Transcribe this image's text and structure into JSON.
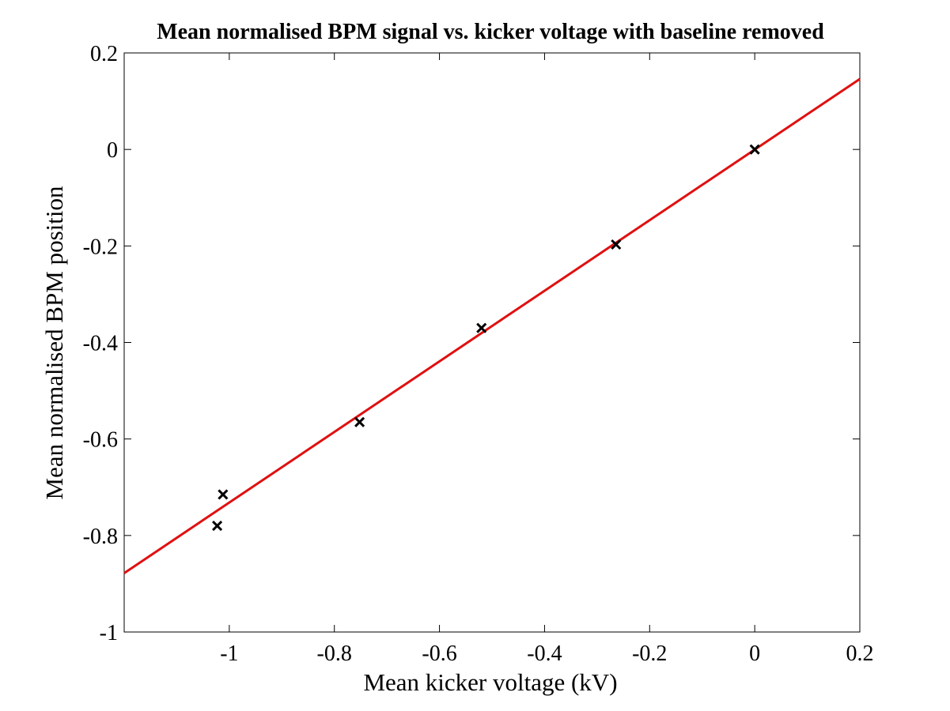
{
  "chart_data": {
    "type": "scatter",
    "title": "Mean normalised BPM signal vs. kicker voltage with baseline removed",
    "xlabel": "Mean kicker voltage (kV)",
    "ylabel": "Mean normalised BPM position",
    "xlim": [
      -1.2,
      0.2
    ],
    "ylim": [
      -1,
      0.2
    ],
    "xticks": [
      -1,
      -0.8,
      -0.6,
      -0.4,
      -0.2,
      0,
      0.2
    ],
    "xtick_labels": [
      "-1",
      "-0.8",
      "-0.6",
      "-0.4",
      "-0.2",
      "0",
      "0.2"
    ],
    "yticks": [
      -1,
      -0.8,
      -0.6,
      -0.4,
      -0.2,
      0,
      0.2
    ],
    "ytick_labels": [
      "-1",
      "-0.8",
      "-0.6",
      "-0.4",
      "-0.2",
      "0",
      "0.2"
    ],
    "grid": false,
    "series": [
      {
        "marker": "x",
        "color": "#000000",
        "x": [
          -1.023,
          -1.012,
          -0.752,
          -0.52,
          -0.264,
          0.0
        ],
        "y": [
          -0.78,
          -0.715,
          -0.565,
          -0.37,
          -0.197,
          0.0
        ]
      },
      {
        "type": "line",
        "color": "#e01010",
        "x": [
          -1.2,
          0.2
        ],
        "y": [
          -0.878,
          0.146
        ]
      }
    ]
  }
}
